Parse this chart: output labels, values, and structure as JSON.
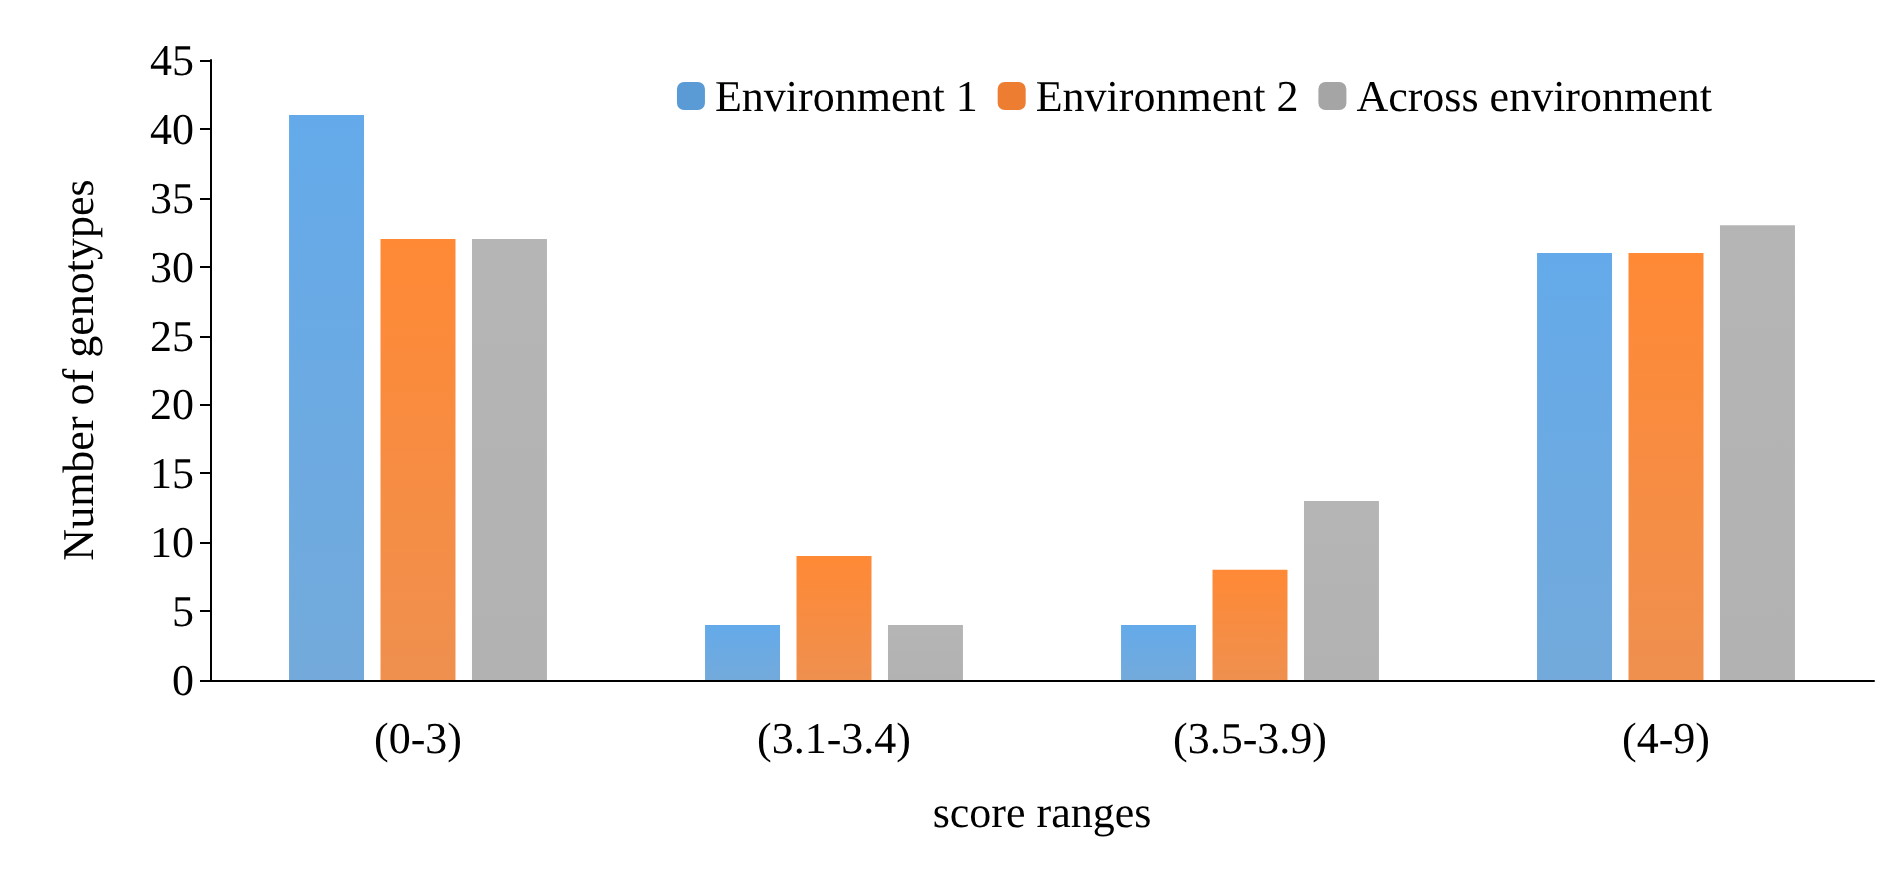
{
  "chart_data": {
    "type": "bar",
    "xlabel": "score ranges",
    "ylabel": "Number of genotypes",
    "categories": [
      "(0-3)",
      "(3.1-3.4)",
      "(3.5-3.9)",
      "(4-9)"
    ],
    "series": [
      {
        "name": "Environment 1",
        "color": "#5b9bd5",
        "values": [
          41,
          4,
          4,
          31
        ]
      },
      {
        "name": "Environment 2",
        "color": "#ed7d31",
        "values": [
          32,
          9,
          8,
          31
        ]
      },
      {
        "name": "Across environment",
        "color": "#a5a5a5",
        "values": [
          32,
          4,
          13,
          33
        ]
      }
    ],
    "ylim": [
      0,
      45
    ],
    "yticks": [
      0,
      5,
      10,
      15,
      20,
      25,
      30,
      35,
      40,
      45
    ],
    "grid": false,
    "legend": "top right"
  }
}
